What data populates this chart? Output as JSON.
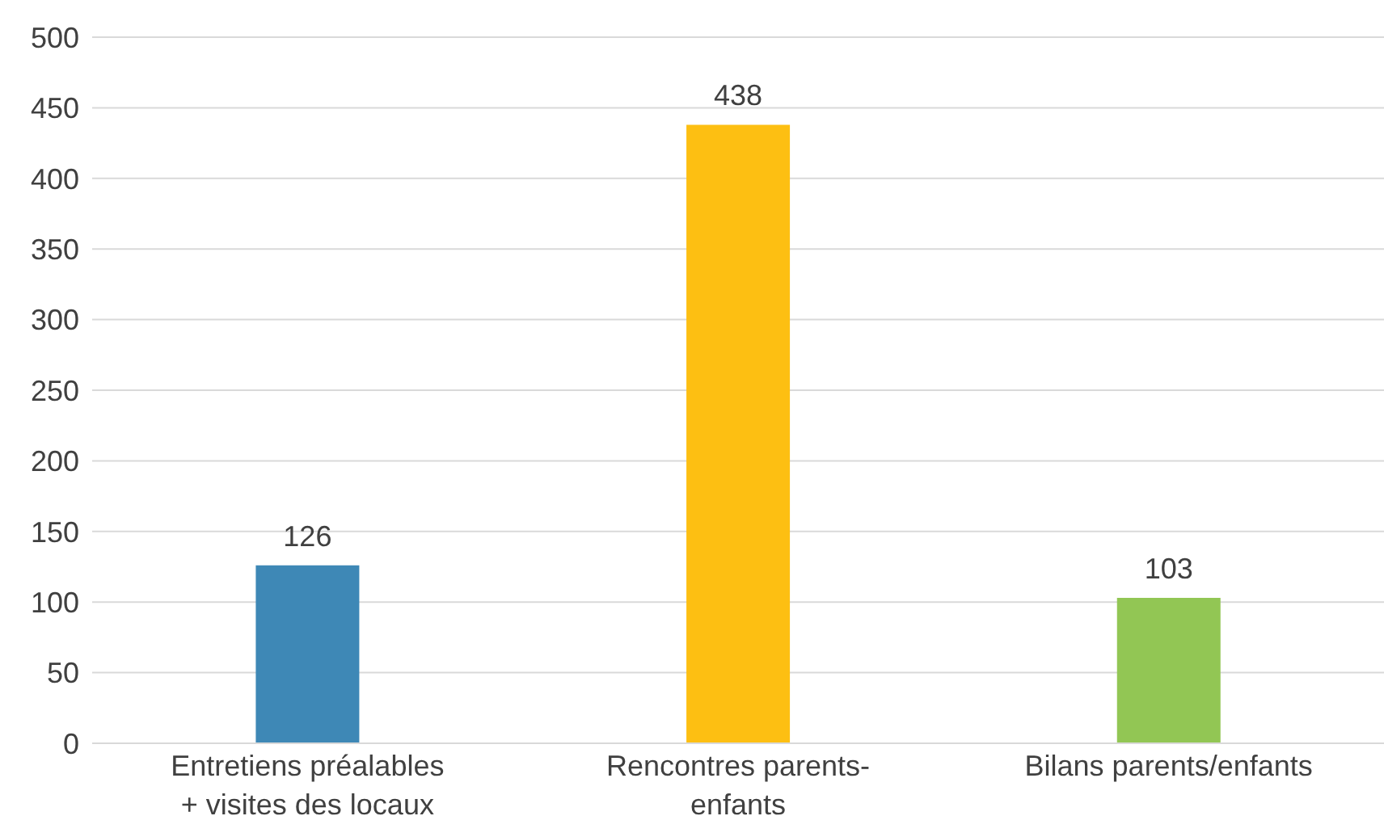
{
  "chart_data": {
    "type": "bar",
    "categories": [
      "Entretiens préalables + visites des locaux",
      "Rencontres parents-enfants",
      "Bilans parents/enfants"
    ],
    "values": [
      126,
      438,
      103
    ],
    "colors": [
      "#3e88b6",
      "#fdbf12",
      "#92c654"
    ],
    "ylim": [
      0,
      500
    ],
    "yticks": [
      0,
      50,
      100,
      150,
      200,
      250,
      300,
      350,
      400,
      450,
      500
    ],
    "grid": "y",
    "data_labels": true,
    "legend": false
  }
}
